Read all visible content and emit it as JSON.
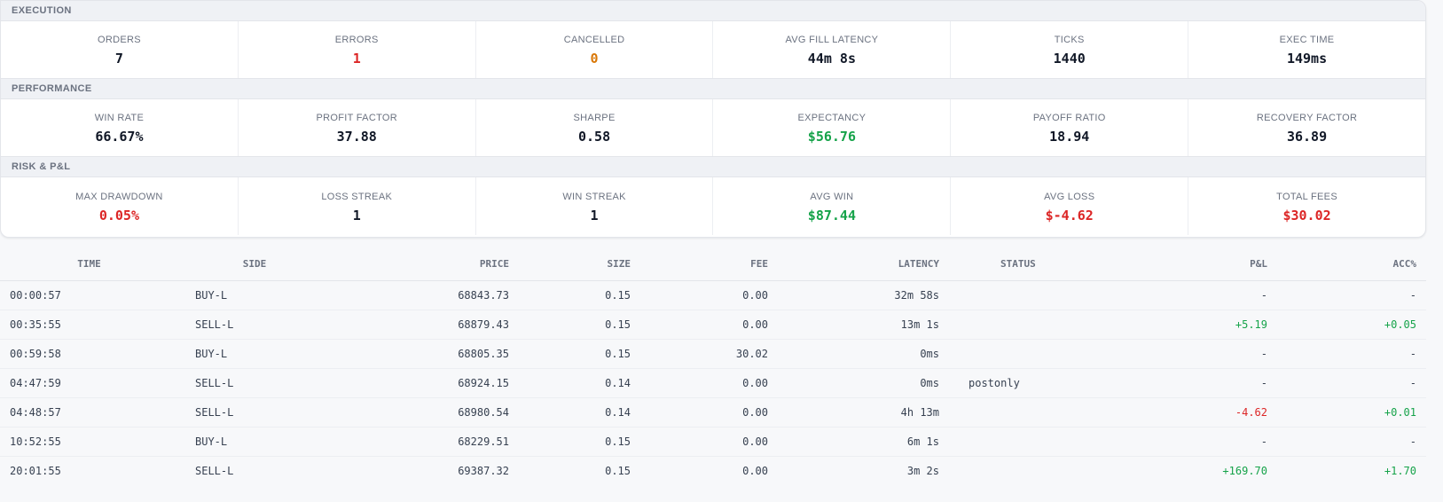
{
  "sections": [
    {
      "title": "EXECUTION",
      "metrics": [
        {
          "label": "ORDERS",
          "value": "7",
          "color": "default"
        },
        {
          "label": "ERRORS",
          "value": "1",
          "color": "red"
        },
        {
          "label": "CANCELLED",
          "value": "0",
          "color": "orange"
        },
        {
          "label": "AVG FILL LATENCY",
          "value": "44m 8s",
          "color": "default"
        },
        {
          "label": "TICKS",
          "value": "1440",
          "color": "default"
        },
        {
          "label": "EXEC TIME",
          "value": "149ms",
          "color": "default"
        }
      ]
    },
    {
      "title": "PERFORMANCE",
      "metrics": [
        {
          "label": "WIN RATE",
          "value": "66.67%",
          "color": "default"
        },
        {
          "label": "PROFIT FACTOR",
          "value": "37.88",
          "color": "default"
        },
        {
          "label": "SHARPE",
          "value": "0.58",
          "color": "default"
        },
        {
          "label": "EXPECTANCY",
          "value": "$56.76",
          "color": "green"
        },
        {
          "label": "PAYOFF RATIO",
          "value": "18.94",
          "color": "default"
        },
        {
          "label": "RECOVERY FACTOR",
          "value": "36.89",
          "color": "default"
        }
      ]
    },
    {
      "title": "RISK & P&L",
      "metrics": [
        {
          "label": "MAX DRAWDOWN",
          "value": "0.05%",
          "color": "red"
        },
        {
          "label": "LOSS STREAK",
          "value": "1",
          "color": "default"
        },
        {
          "label": "WIN STREAK",
          "value": "1",
          "color": "default"
        },
        {
          "label": "AVG WIN",
          "value": "$87.44",
          "color": "green"
        },
        {
          "label": "AVG LOSS",
          "value": "$-4.62",
          "color": "red"
        },
        {
          "label": "TOTAL FEES",
          "value": "$30.02",
          "color": "red"
        }
      ]
    }
  ],
  "colors": {
    "red": "#dc2626",
    "orange": "#d97706",
    "green": "#16a34a",
    "default": "#111827"
  },
  "trades": {
    "columns": [
      "TIME",
      "SIDE",
      "PRICE",
      "SIZE",
      "FEE",
      "LATENCY",
      "STATUS",
      "P&L",
      "ACC%"
    ],
    "rows": [
      {
        "time": "00:00:57",
        "side": "BUY-L",
        "price": "68843.73",
        "size": "0.15",
        "fee": "0.00",
        "latency": "32m 58s",
        "status": "",
        "pnl": "-",
        "acc": "-"
      },
      {
        "time": "00:35:55",
        "side": "SELL-L",
        "price": "68879.43",
        "size": "0.15",
        "fee": "0.00",
        "latency": "13m 1s",
        "status": "",
        "pnl": "+5.19",
        "acc": "+0.05"
      },
      {
        "time": "00:59:58",
        "side": "BUY-L",
        "price": "68805.35",
        "size": "0.15",
        "fee": "30.02",
        "latency": "0ms",
        "status": "",
        "pnl": "-",
        "acc": "-"
      },
      {
        "time": "04:47:59",
        "side": "SELL-L",
        "price": "68924.15",
        "size": "0.14",
        "fee": "0.00",
        "latency": "0ms",
        "status": "postonly",
        "pnl": "-",
        "acc": "-"
      },
      {
        "time": "04:48:57",
        "side": "SELL-L",
        "price": "68980.54",
        "size": "0.14",
        "fee": "0.00",
        "latency": "4h 13m",
        "status": "",
        "pnl": "-4.62",
        "acc": "+0.01"
      },
      {
        "time": "10:52:55",
        "side": "BUY-L",
        "price": "68229.51",
        "size": "0.15",
        "fee": "0.00",
        "latency": "6m 1s",
        "status": "",
        "pnl": "-",
        "acc": "-"
      },
      {
        "time": "20:01:55",
        "side": "SELL-L",
        "price": "69387.32",
        "size": "0.15",
        "fee": "0.00",
        "latency": "3m 2s",
        "status": "",
        "pnl": "+169.70",
        "acc": "+1.70"
      }
    ]
  }
}
